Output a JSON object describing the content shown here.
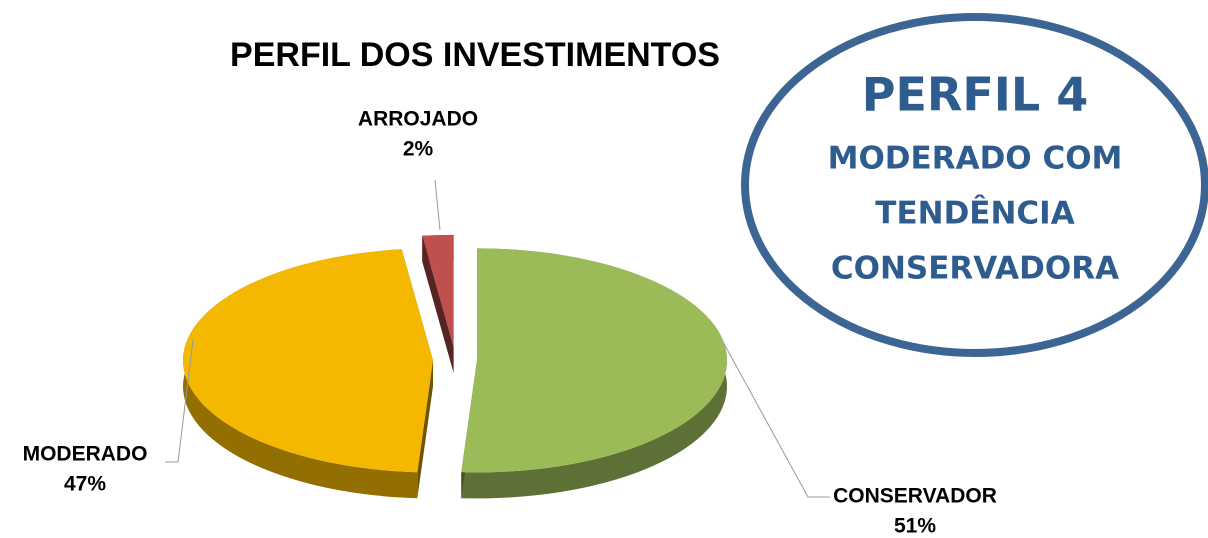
{
  "chart_data": {
    "type": "pie3d",
    "title": "PERFIL DOS INVESTIMENTOS",
    "categories": [
      "CONSERVADOR",
      "MODERADO",
      "ARROJADO"
    ],
    "values": [
      51,
      47,
      2
    ],
    "value_labels": [
      "51%",
      "47%",
      "2%"
    ],
    "colors": [
      "#9bbb59",
      "#f5b800",
      "#c0504d"
    ],
    "annotations": [
      "PERFIL 4",
      "MODERADO COM",
      "TENDÊNCIA",
      "CONSERVADORA"
    ]
  }
}
